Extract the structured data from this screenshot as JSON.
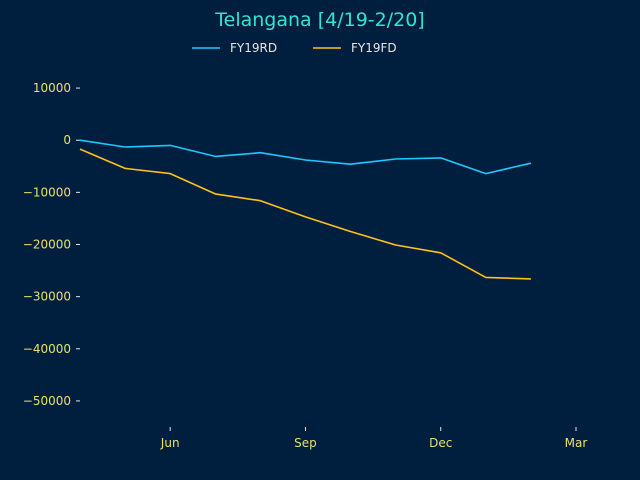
{
  "chart_data": {
    "type": "line",
    "title": "Telangana [4/19-2/20]",
    "xlabel": "",
    "ylabel": "",
    "x": [
      "2019-04",
      "2019-05",
      "2019-06",
      "2019-07",
      "2019-08",
      "2019-09",
      "2019-10",
      "2019-11",
      "2019-12",
      "2020-01",
      "2020-02"
    ],
    "xlim": [
      "2019-04",
      "2020-03"
    ],
    "ylim": [
      -55000,
      15000
    ],
    "x_ticks": [
      {
        "date": "2019-06",
        "label": "Jun"
      },
      {
        "date": "2019-09",
        "label": "Sep"
      },
      {
        "date": "2019-12",
        "label": "Dec"
      },
      {
        "date": "2020-03",
        "label": "Mar"
      }
    ],
    "y_ticks": [
      {
        "value": 10000,
        "label": "10000"
      },
      {
        "value": 0,
        "label": "0"
      },
      {
        "value": -10000,
        "label": "−10000"
      },
      {
        "value": -20000,
        "label": "−20000"
      },
      {
        "value": -30000,
        "label": "−30000"
      },
      {
        "value": -40000,
        "label": "−40000"
      },
      {
        "value": -50000,
        "label": "−50000"
      }
    ],
    "grid": false,
    "legend": "top-center",
    "series": [
      {
        "name": "FY19RD",
        "color": "#1ec8ff",
        "values": [
          0,
          -1300,
          -1000,
          -3100,
          -2400,
          -3800,
          -4600,
          -3600,
          -3400,
          -6400,
          -4400
        ]
      },
      {
        "name": "FY19FD",
        "color": "#ffc21a",
        "values": [
          -1700,
          -5400,
          -6400,
          -10300,
          -11600,
          -14700,
          -17500,
          -20100,
          -21600,
          -26300,
          -26600
        ]
      }
    ]
  }
}
